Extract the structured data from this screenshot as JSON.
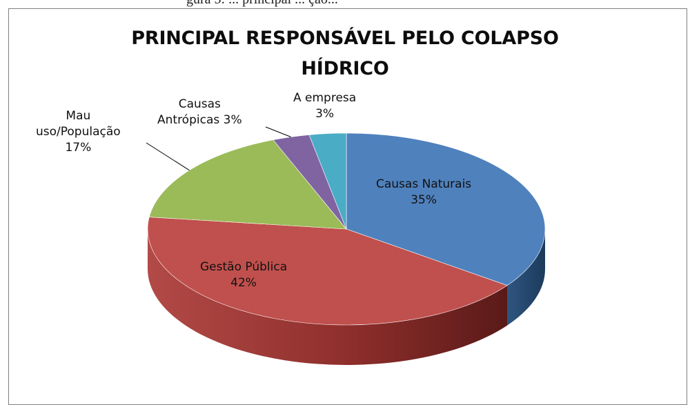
{
  "header_text": "gura 5: ... principal ... ção...",
  "chart_data": {
    "type": "pie",
    "title": "PRINCIPAL RESPONSÁVEL PELO COLAPSO HÍDRICO",
    "title_lines": [
      "PRINCIPAL RESPONSÁVEL PELO COLAPSO",
      "HÍDRICO"
    ],
    "three_d": true,
    "slices": [
      {
        "name": "Causas Naturais",
        "value": 35,
        "label_name": "Causas Naturais",
        "label_pct": "35%",
        "color": "#4F81BD"
      },
      {
        "name": "Gestão Pública",
        "value": 42,
        "label_name": "Gestão Pública",
        "label_pct": "42%",
        "color": "#C0504D"
      },
      {
        "name": "Mau uso/População",
        "value": 17,
        "label_name_1": "Mau",
        "label_name_2": "uso/População",
        "label_pct": "17%",
        "color": "#9BBB59"
      },
      {
        "name": "Causas Antrópicas",
        "value": 3,
        "label_name_1": "Causas",
        "label_name_2": "Antrópicas 3%",
        "color": "#8064A2"
      },
      {
        "name": "A empresa",
        "value": 3,
        "label_name": "A empresa",
        "label_pct": "3%",
        "color": "#4BACC6"
      }
    ]
  }
}
